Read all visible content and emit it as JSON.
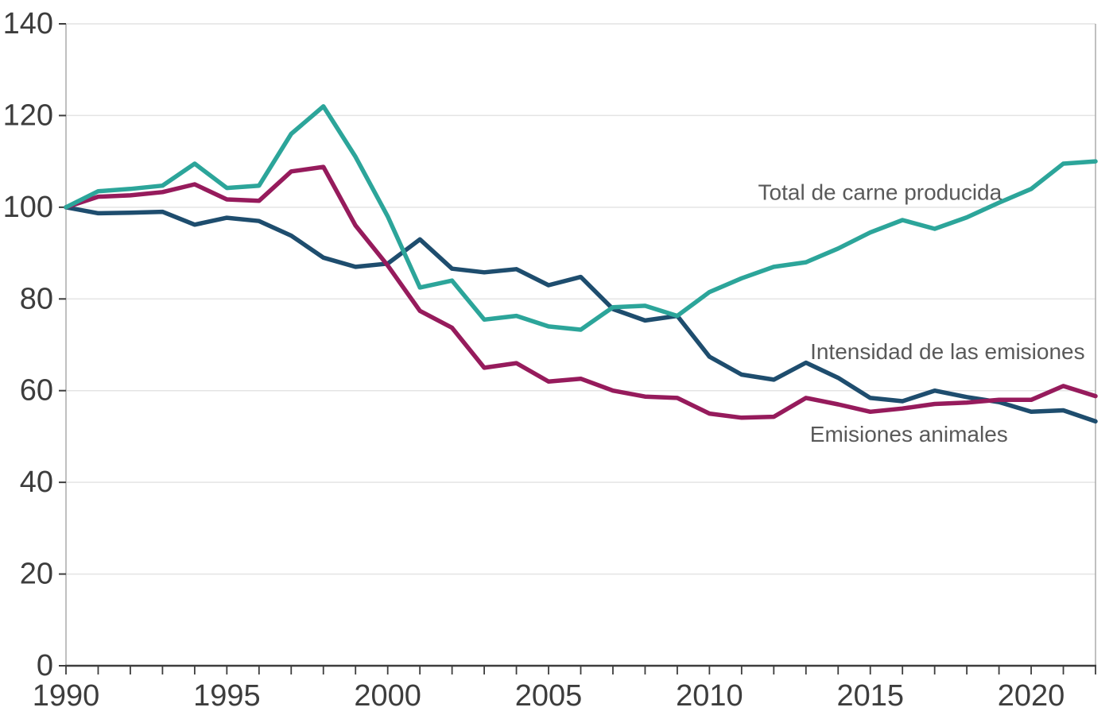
{
  "chart_data": {
    "type": "line",
    "title": "",
    "xlabel": "",
    "ylabel": "",
    "x": [
      1990,
      1991,
      1992,
      1993,
      1994,
      1995,
      1996,
      1997,
      1998,
      1999,
      2000,
      2001,
      2002,
      2003,
      2004,
      2005,
      2006,
      2007,
      2008,
      2009,
      2010,
      2011,
      2012,
      2013,
      2014,
      2015,
      2016,
      2017,
      2018,
      2019,
      2020,
      2021,
      2022
    ],
    "series": [
      {
        "key": "intensidad-de-las-emisiones",
        "name": "Intensidad de las emisiones",
        "color": "#1e4d6e",
        "values": [
          100,
          98.7,
          98.8,
          99,
          96.2,
          97.7,
          97,
          93.8,
          89,
          87,
          87.7,
          93,
          86.6,
          85.8,
          86.5,
          83,
          84.8,
          77.8,
          75.3,
          76.3,
          67.4,
          63.5,
          62.4,
          66.1,
          62.8,
          58.4,
          57.7,
          60,
          58.6,
          57.5,
          55.4,
          55.7,
          53.3
        ]
      },
      {
        "key": "emisiones-animales",
        "name": "Emisiones animales",
        "color": "#961b5c",
        "values": [
          100,
          102.3,
          102.6,
          103.3,
          105,
          101.7,
          101.4,
          107.8,
          108.8,
          96,
          87.3,
          77.4,
          73.7,
          65,
          66,
          62,
          62.6,
          60,
          58.7,
          58.4,
          55,
          54.1,
          54.3,
          58.4,
          57,
          55.4,
          56.1,
          57.1,
          57.4,
          58,
          58,
          61,
          58.8
        ]
      },
      {
        "key": "total-de-carne-producida",
        "name": "Total de carne producida",
        "color": "#2ca59a",
        "values": [
          100,
          103.5,
          104,
          104.7,
          109.5,
          104.2,
          104.7,
          116,
          122,
          111,
          98,
          82.5,
          84,
          75.5,
          76.3,
          74,
          73.3,
          78.2,
          78.5,
          76.3,
          81.5,
          84.5,
          87,
          88,
          91,
          94.5,
          97.2,
          95.3,
          97.8,
          101,
          104,
          109.5,
          110
        ]
      }
    ],
    "annotations": [
      {
        "text": "Total de carne producida",
        "x": 2015.3,
        "y": 103.3
      },
      {
        "text": "Intensidad de las emisiones",
        "x": 2017.4,
        "y": 68.5
      },
      {
        "text": "Emisiones animales",
        "x": 2016.2,
        "y": 50.5
      }
    ],
    "ylim": [
      0,
      140
    ],
    "y_ticks": [
      0,
      20,
      40,
      60,
      80,
      100,
      120,
      140
    ],
    "x_tick_labels": [
      1990,
      1995,
      2000,
      2005,
      2010,
      2015,
      2020
    ],
    "grid": "horizontal",
    "legend_position": "inline-annotations",
    "axis_color": "#3d3d3d",
    "grid_color": "#e4e4e4",
    "border_color": "#ababab",
    "annotation_color": "#595959"
  }
}
